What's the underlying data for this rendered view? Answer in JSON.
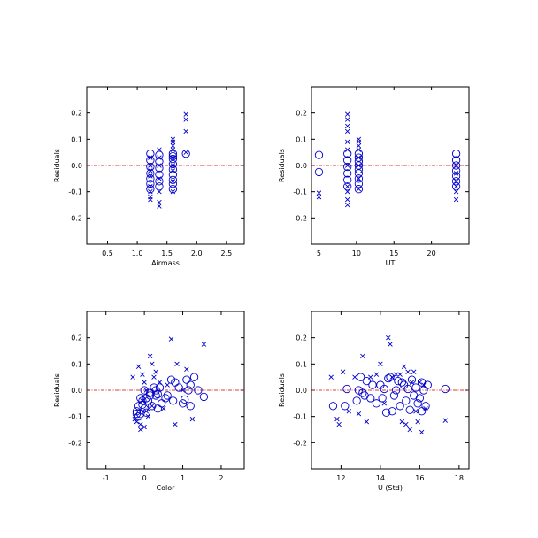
{
  "chart_data": [
    {
      "type": "scatter",
      "xlabel": "Airmass",
      "ylabel": "Residuals",
      "xlim": [
        0.15,
        2.8
      ],
      "ylim": [
        -0.3,
        0.3
      ],
      "xticks": [
        "0.5",
        "1.0",
        "1.5",
        "2.0",
        "2.5"
      ],
      "yticks": [
        "-0.2",
        "-0.1",
        "0.0",
        "0.1",
        "0.2"
      ],
      "reference_line": {
        "y": 0.0,
        "color": "#cc0000",
        "style": "dash-dot"
      },
      "marker_color": "#0000cc",
      "series": [
        {
          "marker": "circle",
          "x": [
            1.22,
            1.22,
            1.22,
            1.22,
            1.22,
            1.22,
            1.22,
            1.37,
            1.37,
            1.37,
            1.37,
            1.37,
            1.37,
            1.6,
            1.6,
            1.6,
            1.6,
            1.6,
            1.6,
            1.6,
            1.6,
            1.6,
            1.82
          ],
          "y": [
            0.045,
            0.02,
            -0.005,
            -0.03,
            -0.05,
            -0.07,
            -0.09,
            0.04,
            0.015,
            -0.01,
            -0.035,
            -0.06,
            -0.08,
            0.045,
            0.025,
            0.005,
            -0.015,
            -0.035,
            -0.055,
            -0.07,
            -0.09,
            0.035,
            0.045
          ]
        },
        {
          "marker": "x",
          "x": [
            1.22,
            1.22,
            1.22,
            1.22,
            1.22,
            1.22,
            1.22,
            1.22,
            1.37,
            1.37,
            1.37,
            1.37,
            1.37,
            1.37,
            1.37,
            1.6,
            1.6,
            1.6,
            1.6,
            1.6,
            1.6,
            1.6,
            1.6,
            1.6,
            1.82,
            1.82,
            1.82,
            1.82
          ],
          "y": [
            0.03,
            0.0,
            -0.02,
            -0.04,
            -0.08,
            -0.1,
            -0.12,
            -0.13,
            0.06,
            0.03,
            0.0,
            -0.05,
            -0.1,
            -0.14,
            -0.155,
            0.1,
            0.09,
            0.075,
            0.06,
            0.03,
            0.0,
            -0.02,
            -0.06,
            -0.1,
            0.195,
            0.175,
            0.13,
            0.05
          ]
        }
      ]
    },
    {
      "type": "scatter",
      "xlabel": "UT",
      "ylabel": "Residuals",
      "xlim": [
        4,
        25
      ],
      "ylim": [
        -0.3,
        0.3
      ],
      "xticks": [
        "5",
        "10",
        "15",
        "20"
      ],
      "yticks": [
        "-0.2",
        "-0.1",
        "0.0",
        "0.1",
        "0.2"
      ],
      "reference_line": {
        "y": 0.0,
        "color": "#cc0000",
        "style": "dash-dot"
      },
      "marker_color": "#0000cc",
      "series": [
        {
          "marker": "circle",
          "x": [
            5.0,
            5.0,
            8.8,
            8.8,
            8.8,
            8.8,
            8.8,
            8.8,
            10.3,
            10.3,
            10.3,
            10.3,
            10.3,
            10.3,
            10.3,
            10.3,
            10.3,
            23.3,
            23.3,
            23.3,
            23.3,
            23.3,
            23.3,
            23.3
          ],
          "y": [
            0.04,
            -0.025,
            0.045,
            0.02,
            -0.005,
            -0.03,
            -0.055,
            -0.08,
            0.045,
            0.03,
            0.015,
            0.0,
            -0.015,
            -0.03,
            -0.05,
            -0.07,
            -0.09,
            0.045,
            0.02,
            0.0,
            -0.02,
            -0.04,
            -0.06,
            -0.08
          ]
        },
        {
          "marker": "x",
          "x": [
            5.0,
            5.0,
            8.8,
            8.8,
            8.8,
            8.8,
            8.8,
            8.8,
            8.8,
            8.8,
            8.8,
            8.8,
            8.8,
            10.3,
            10.3,
            10.3,
            10.3,
            10.3,
            10.3,
            10.3,
            10.3,
            23.3,
            23.3,
            23.3,
            23.3,
            23.3,
            23.3
          ],
          "y": [
            -0.105,
            -0.12,
            0.195,
            0.175,
            0.15,
            0.13,
            0.09,
            0.06,
            0.0,
            -0.08,
            -0.1,
            -0.13,
            -0.15,
            0.1,
            0.09,
            0.075,
            0.06,
            0.03,
            0.0,
            -0.05,
            -0.09,
            0.0,
            -0.03,
            -0.06,
            -0.08,
            -0.1,
            -0.13
          ]
        }
      ]
    },
    {
      "type": "scatter",
      "xlabel": "Color",
      "ylabel": "Residuals",
      "xlim": [
        -1.5,
        2.6
      ],
      "ylim": [
        -0.3,
        0.3
      ],
      "xticks": [
        "-1",
        "0",
        "1",
        "2"
      ],
      "yticks": [
        "-0.2",
        "-0.1",
        "0.0",
        "0.1",
        "0.2"
      ],
      "reference_line": {
        "y": 0.0,
        "color": "#cc0000",
        "style": "dash-dot"
      },
      "marker_color": "#0000cc",
      "series": [
        {
          "marker": "circle",
          "x": [
            -0.2,
            -0.15,
            -0.1,
            -0.05,
            0.0,
            0.05,
            -0.1,
            -0.2,
            0.1,
            0.15,
            0.2,
            0.25,
            0.3,
            0.35,
            0.4,
            0.45,
            0.55,
            0.6,
            0.7,
            0.75,
            0.8,
            0.9,
            1.0,
            1.1,
            1.15,
            1.2,
            1.3,
            1.4,
            1.55,
            -0.05,
            0.05,
            0.15,
            -0.15,
            0.0,
            0.3,
            0.35,
            1.2,
            1.05
          ],
          "y": [
            -0.08,
            -0.06,
            -0.09,
            -0.04,
            0.0,
            -0.03,
            -0.03,
            -0.09,
            -0.04,
            -0.02,
            -0.06,
            0.01,
            -0.02,
            -0.07,
            0.01,
            -0.05,
            -0.03,
            -0.02,
            0.04,
            -0.04,
            0.03,
            0.01,
            -0.05,
            0.04,
            0.0,
            -0.06,
            0.05,
            0.0,
            -0.025,
            -0.055,
            -0.085,
            -0.01,
            -0.1,
            -0.07,
            0.0,
            -0.015,
            0.02,
            -0.035
          ]
        },
        {
          "marker": "x",
          "x": [
            -0.3,
            -0.25,
            -0.2,
            -0.15,
            -0.1,
            -0.1,
            -0.05,
            0.0,
            0.0,
            0.05,
            0.1,
            0.15,
            0.2,
            0.2,
            0.3,
            0.4,
            0.5,
            0.6,
            0.7,
            0.8,
            0.85,
            1.0,
            1.1,
            1.25,
            1.55,
            -0.05,
            0.05,
            0.25
          ],
          "y": [
            0.05,
            -0.11,
            -0.12,
            0.09,
            -0.13,
            -0.15,
            0.06,
            0.03,
            -0.14,
            0.0,
            -0.1,
            0.13,
            0.1,
            -0.06,
            0.07,
            0.03,
            -0.07,
            0.02,
            0.195,
            -0.13,
            0.1,
            0.0,
            0.08,
            -0.11,
            0.175,
            -0.04,
            -0.08,
            0.05
          ]
        }
      ]
    },
    {
      "type": "scatter",
      "xlabel": "U (Std)",
      "ylabel": "Residuals",
      "xlim": [
        10.5,
        18.5
      ],
      "ylim": [
        -0.3,
        0.3
      ],
      "xticks": [
        "12",
        "14",
        "16",
        "18"
      ],
      "yticks": [
        "-0.2",
        "-0.1",
        "0.0",
        "0.1",
        "0.2"
      ],
      "reference_line": {
        "y": 0.0,
        "color": "#cc0000",
        "style": "dash-dot"
      },
      "marker_color": "#0000cc",
      "series": [
        {
          "marker": "circle",
          "x": [
            11.6,
            12.2,
            12.3,
            12.8,
            13.0,
            13.1,
            13.3,
            13.5,
            13.6,
            13.8,
            14.0,
            14.1,
            14.2,
            14.3,
            14.4,
            14.5,
            14.6,
            14.8,
            15.0,
            15.1,
            15.2,
            15.3,
            15.4,
            15.5,
            15.6,
            15.8,
            15.9,
            16.0,
            16.1,
            16.2,
            16.3,
            16.4,
            17.3,
            13.2,
            14.7,
            15.7,
            16.1,
            12.9,
            14.9
          ],
          "y": [
            -0.06,
            -0.06,
            0.005,
            -0.04,
            0.05,
            -0.01,
            0.035,
            -0.03,
            0.02,
            -0.05,
            0.02,
            -0.03,
            0.005,
            -0.085,
            0.045,
            0.05,
            -0.08,
            0.0,
            -0.06,
            0.03,
            0.02,
            -0.04,
            0.005,
            -0.075,
            0.04,
            0.01,
            -0.05,
            -0.03,
            0.03,
            0.0,
            -0.06,
            0.02,
            0.005,
            -0.02,
            -0.02,
            -0.02,
            -0.08,
            0.0,
            0.035
          ]
        },
        {
          "marker": "x",
          "x": [
            11.5,
            11.8,
            11.9,
            12.1,
            12.4,
            12.7,
            12.9,
            13.1,
            13.3,
            13.5,
            13.8,
            14.0,
            14.2,
            14.4,
            14.5,
            14.6,
            14.8,
            15.0,
            15.1,
            15.2,
            15.3,
            15.4,
            15.5,
            15.6,
            15.7,
            15.8,
            15.9,
            16.0,
            16.1,
            16.2,
            16.3,
            17.3
          ],
          "y": [
            0.05,
            -0.11,
            -0.13,
            0.07,
            -0.08,
            0.05,
            -0.09,
            0.13,
            -0.12,
            0.05,
            0.06,
            0.1,
            -0.05,
            0.2,
            0.175,
            0.05,
            0.06,
            0.06,
            -0.12,
            0.09,
            -0.13,
            0.07,
            -0.15,
            0.03,
            0.07,
            -0.08,
            -0.12,
            0.03,
            -0.16,
            0.02,
            -0.07,
            -0.115
          ]
        }
      ]
    }
  ]
}
